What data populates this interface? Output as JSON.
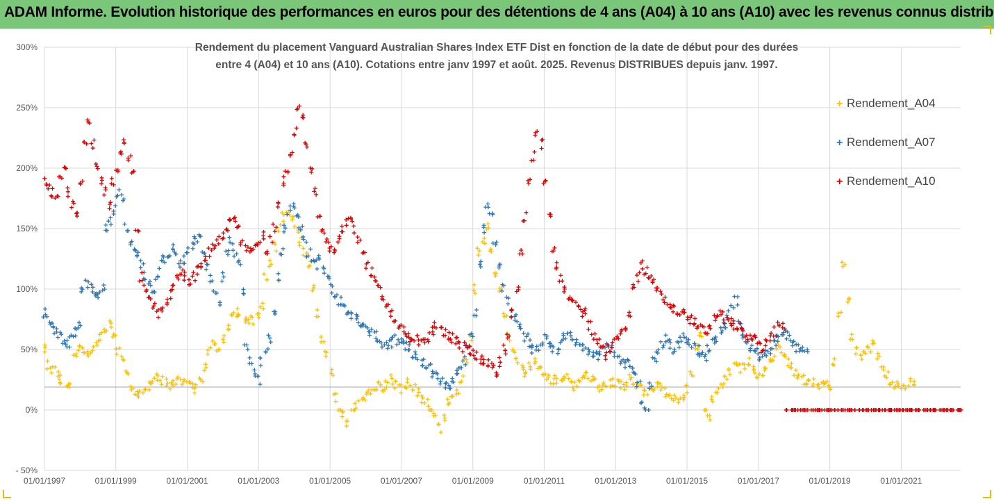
{
  "header": {
    "title": "ADAM Informe. Evolution historique des performances en euros pour des détentions de 4 ans (A04) à 10 ans (A10) avec les revenus connus distribués",
    "background": "#7ac77a"
  },
  "chart_data": {
    "type": "scatter",
    "title_line1": "Rendement du placement Vanguard Australian Shares Index ETF Dist en fonction de la date de début pour des durées",
    "title_line2": "entre 4 (A04) et 10 ans (A10). Cotations entre janv 1997 et août. 2025. Revenus DISTRIBUES depuis janv. 1997.",
    "xlabel": "",
    "ylabel": "",
    "x_tick_labels": [
      "01/01/1997",
      "01/01/1999",
      "01/01/2001",
      "01/01/2003",
      "01/01/2005",
      "01/01/2007",
      "01/01/2009",
      "01/01/2011",
      "01/01/2013",
      "01/01/2015",
      "01/01/2017",
      "01/01/2019",
      "01/01/2021"
    ],
    "xlim": [
      "01/01/1997",
      "01/09/2022"
    ],
    "y_tick_labels": [
      "- 50%",
      "0%",
      "50%",
      "100%",
      "150%",
      "200%",
      "250%",
      "300%"
    ],
    "ylim": [
      -50,
      300
    ],
    "y_unit": "%",
    "grid": "horizontal and vertical",
    "legend_position": "right",
    "marker": "+",
    "reference_line_y": 19,
    "series": [
      {
        "name": "Rendement_A04",
        "color": "#ffc000",
        "x_start": "01/01/1997",
        "x_end": "01/05/2021",
        "values": [
          52,
          38,
          32,
          28,
          25,
          22,
          20,
          45,
          52,
          48,
          45,
          50,
          55,
          60,
          65,
          70,
          60,
          50,
          45,
          30,
          20,
          15,
          12,
          15,
          20,
          25,
          28,
          25,
          22,
          20,
          22,
          25,
          22,
          20,
          18,
          18,
          25,
          35,
          48,
          55,
          50,
          60,
          70,
          75,
          80,
          78,
          75,
          72,
          75,
          80,
          85,
          110,
          120,
          135,
          150,
          160,
          165,
          160,
          150,
          140,
          130,
          120,
          100,
          80,
          60,
          45,
          30,
          10,
          0,
          -5,
          -10,
          0,
          5,
          10,
          12,
          15,
          18,
          20,
          18,
          22,
          25,
          20,
          18,
          20,
          22,
          20,
          15,
          10,
          5,
          0,
          -5,
          -15,
          -8,
          5,
          10,
          15,
          25,
          40,
          60,
          100,
          130,
          140,
          150,
          130,
          110,
          100,
          80,
          60,
          50,
          40,
          35,
          30,
          35,
          40,
          35,
          30,
          28,
          25,
          25,
          28,
          30,
          25,
          20,
          22,
          25,
          28,
          25,
          22,
          18,
          20,
          22,
          22,
          25,
          20,
          20,
          25,
          20,
          18,
          15,
          15,
          18,
          20,
          18,
          15,
          12,
          10,
          8,
          10,
          18,
          30,
          50,
          60,
          0,
          -5,
          10,
          15,
          20,
          25,
          30,
          35,
          35,
          38,
          40,
          35,
          30,
          30,
          35,
          40,
          45,
          50,
          45,
          40,
          35,
          30,
          28,
          25,
          22,
          22,
          20,
          20,
          22,
          18,
          40,
          80,
          120,
          90,
          60,
          50,
          45,
          45,
          50,
          55,
          45,
          35,
          30,
          25,
          20,
          20,
          20,
          22,
          20
        ]
      },
      {
        "name": "Rendement_A07",
        "color": "#2e75b6",
        "x_start": "01/01/1997",
        "x_end": "01/05/2018",
        "values": [
          80,
          75,
          70,
          65,
          62,
          58,
          56,
          60,
          65,
          70,
          100,
          105,
          100,
          98,
          95,
          100,
          150,
          155,
          165,
          180,
          175,
          150,
          140,
          135,
          130,
          120,
          110,
          105,
          100,
          110,
          120,
          125,
          130,
          135,
          130,
          120,
          125,
          130,
          135,
          140,
          145,
          130,
          120,
          110,
          100,
          90,
          110,
          130,
          140,
          130,
          120,
          100,
          50,
          40,
          30,
          25,
          40,
          50,
          60,
          80,
          110,
          130,
          150,
          165,
          170,
          160,
          150,
          140,
          130,
          120,
          120,
          125,
          115,
          110,
          100,
          95,
          90,
          85,
          80,
          78,
          75,
          72,
          70,
          68,
          65,
          62,
          58,
          55,
          52,
          55,
          60,
          58,
          55,
          52,
          50,
          45,
          42,
          40,
          38,
          35,
          30,
          28,
          25,
          22,
          20,
          25,
          30,
          35,
          40,
          50,
          60,
          80,
          120,
          150,
          170,
          160,
          140,
          120,
          100,
          90,
          80,
          75,
          70,
          65,
          60,
          55,
          50,
          50,
          55,
          60,
          55,
          50,
          50,
          55,
          60,
          65,
          60,
          55,
          52,
          50,
          48,
          45,
          45,
          48,
          50,
          52,
          50,
          45,
          42,
          40,
          38,
          35,
          30,
          20,
          5,
          0,
          20,
          40,
          50,
          55,
          60,
          55,
          50,
          55,
          60,
          58,
          55,
          52,
          50,
          48,
          45,
          50,
          55,
          60,
          65,
          70,
          80,
          85,
          90,
          70,
          60,
          55,
          50,
          48,
          45,
          45,
          48,
          50,
          55,
          58,
          60,
          62,
          60,
          55,
          50,
          52,
          50
        ]
      },
      {
        "name": "Rendement_A10",
        "color": "#e00000",
        "x_start": "01/01/1997",
        "x_end": "01/09/2022",
        "values": [
          190,
          185,
          180,
          175,
          190,
          200,
          180,
          170,
          160,
          190,
          220,
          240,
          220,
          200,
          190,
          180,
          170,
          190,
          200,
          210,
          220,
          210,
          200,
          150,
          110,
          100,
          90,
          85,
          80,
          85,
          90,
          95,
          100,
          110,
          115,
          110,
          105,
          110,
          115,
          120,
          125,
          130,
          135,
          140,
          145,
          150,
          155,
          160,
          150,
          140,
          135,
          130,
          135,
          140,
          145,
          130,
          140,
          150,
          170,
          190,
          200,
          210,
          230,
          250,
          240,
          220,
          200,
          180,
          160,
          150,
          140,
          135,
          130,
          140,
          150,
          155,
          160,
          150,
          140,
          130,
          120,
          115,
          110,
          100,
          90,
          85,
          80,
          75,
          70,
          65,
          62,
          60,
          58,
          55,
          55,
          60,
          65,
          70,
          68,
          65,
          62,
          60,
          58,
          55,
          52,
          50,
          48,
          45,
          42,
          40,
          38,
          35,
          30,
          40,
          50,
          60,
          80,
          100,
          130,
          160,
          190,
          210,
          230,
          220,
          190,
          160,
          130,
          120,
          110,
          100,
          95,
          90,
          85,
          80,
          80,
          70,
          60,
          55,
          50,
          45,
          50,
          55,
          60,
          65,
          70,
          80,
          100,
          110,
          120,
          115,
          110,
          105,
          100,
          95,
          90,
          88,
          85,
          82,
          80,
          78,
          75,
          72,
          70,
          68,
          65,
          70,
          75,
          80,
          78,
          75,
          72,
          70,
          68,
          65,
          62,
          60,
          58,
          55,
          50,
          55,
          60,
          65,
          70,
          70,
          0,
          0,
          0,
          0,
          0,
          0,
          0,
          0,
          0,
          0,
          0,
          0,
          0,
          0,
          0,
          0,
          0,
          0,
          0,
          0,
          0,
          0,
          0,
          0,
          0,
          0,
          0,
          0,
          0,
          0,
          0,
          0,
          0,
          0,
          0,
          0,
          0,
          0,
          0,
          0,
          0,
          0,
          0,
          0
        ]
      }
    ]
  }
}
